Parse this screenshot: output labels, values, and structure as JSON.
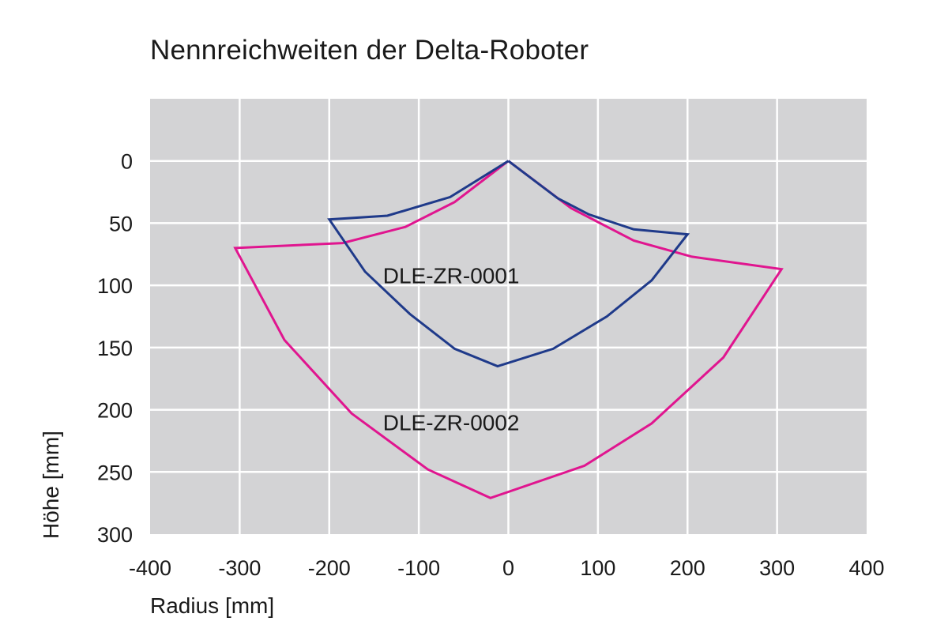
{
  "chart_data": {
    "type": "line",
    "title": "Nennreichweiten der Delta-Roboter",
    "xlabel": "Radius [mm]",
    "ylabel": "Höhe [mm]",
    "xlim": [
      -400,
      400
    ],
    "ylim": [
      300,
      -50
    ],
    "y_inverted": true,
    "grid": true,
    "x_ticks": [
      "-400",
      "-300",
      "-200",
      "-100",
      "0",
      "100",
      "200",
      "300",
      "400"
    ],
    "y_ticks": [
      "0",
      "50",
      "100",
      "150",
      "200",
      "250",
      "300"
    ],
    "series": [
      {
        "name": "DLE-ZR-0001",
        "color": "#1f3a8a",
        "points": [
          [
            0,
            0
          ],
          [
            55,
            30
          ],
          [
            90,
            43
          ],
          [
            140,
            55
          ],
          [
            200,
            59
          ],
          [
            160,
            96
          ],
          [
            110,
            125
          ],
          [
            50,
            151
          ],
          [
            -12,
            165
          ],
          [
            -60,
            151
          ],
          [
            -110,
            123
          ],
          [
            -160,
            89
          ],
          [
            -200,
            47
          ],
          [
            -135,
            44
          ],
          [
            -65,
            29
          ],
          [
            0,
            0
          ]
        ]
      },
      {
        "name": "DLE-ZR-0002",
        "color": "#e0158f",
        "points": [
          [
            0,
            0
          ],
          [
            70,
            38
          ],
          [
            140,
            64
          ],
          [
            205,
            77
          ],
          [
            305,
            87
          ],
          [
            240,
            158
          ],
          [
            160,
            211
          ],
          [
            85,
            245
          ],
          [
            -20,
            271
          ],
          [
            -90,
            248
          ],
          [
            -175,
            203
          ],
          [
            -250,
            144
          ],
          [
            -305,
            70
          ],
          [
            -185,
            66
          ],
          [
            -115,
            53
          ],
          [
            -60,
            33
          ],
          [
            0,
            0
          ]
        ]
      }
    ],
    "annotations": [
      {
        "text": "DLE-ZR-0001",
        "x": -140,
        "y": 92
      },
      {
        "text": "DLE-ZR-0002",
        "x": -140,
        "y": 210
      }
    ],
    "plot_background": "#d3d3d5",
    "grid_color": "#ffffff"
  }
}
